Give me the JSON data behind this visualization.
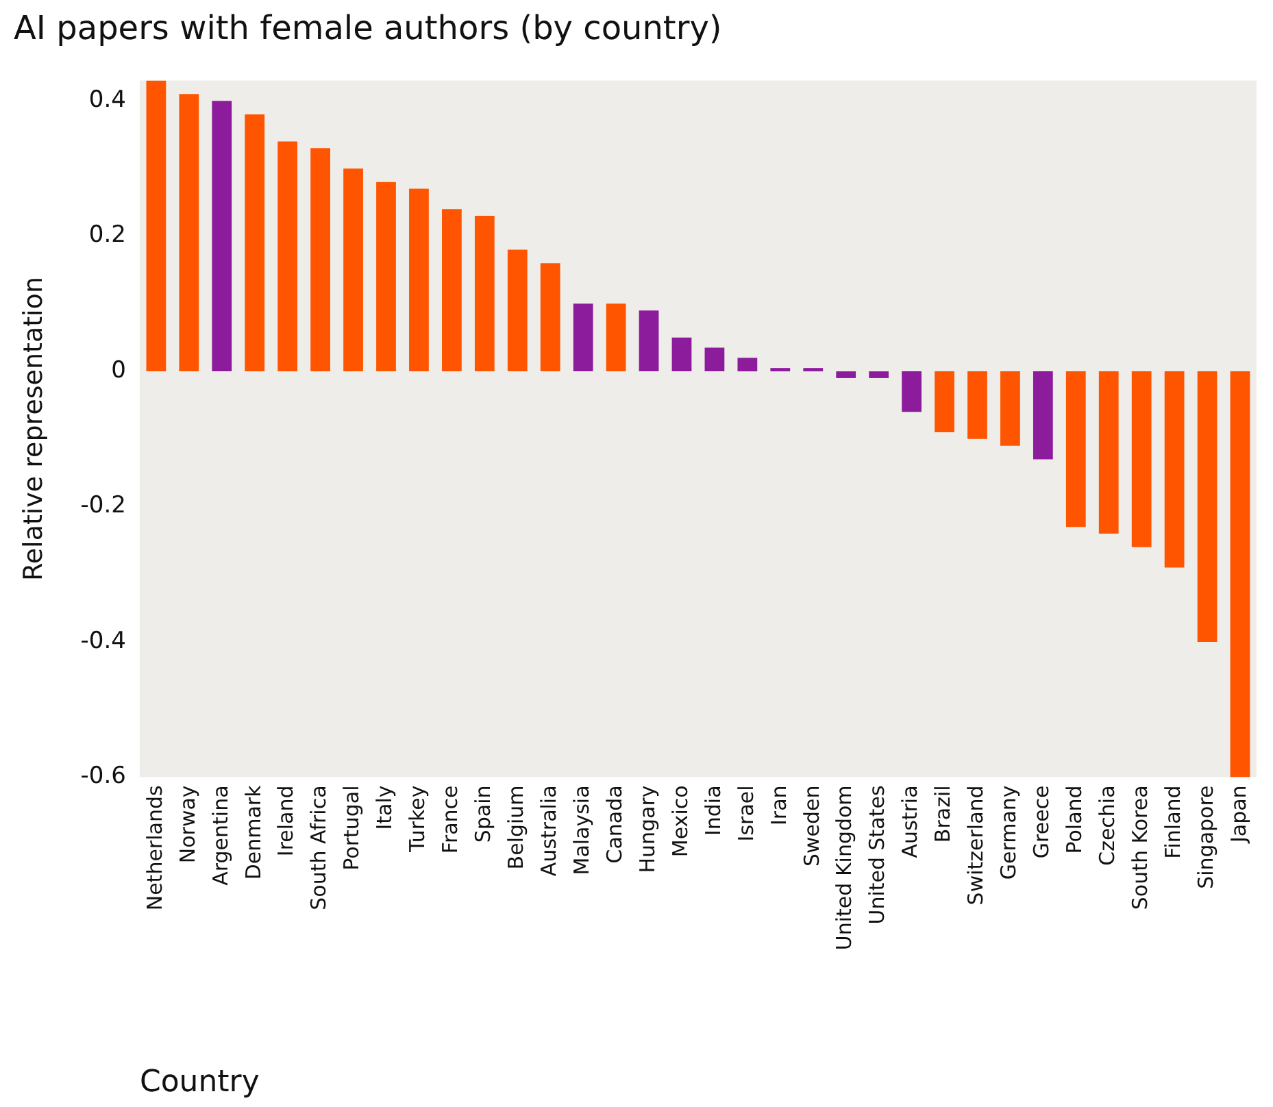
{
  "chart_data": {
    "type": "bar",
    "title": "AI papers with female authors (by country)",
    "xlabel": "Country",
    "ylabel": "Relative representation",
    "categories": [
      "Netherlands",
      "Norway",
      "Argentina",
      "Denmark",
      "Ireland",
      "South Africa",
      "Portugal",
      "Italy",
      "Turkey",
      "France",
      "Spain",
      "Belgium",
      "Australia",
      "Malaysia",
      "Canada",
      "Hungary",
      "Mexico",
      "India",
      "Israel",
      "Iran",
      "Sweden",
      "United Kingdom",
      "United States",
      "Austria",
      "Brazil",
      "Switzerland",
      "Germany",
      "Greece",
      "Poland",
      "Czechia",
      "South Korea",
      "Finland",
      "Singapore",
      "Japan"
    ],
    "values": [
      0.43,
      0.41,
      0.4,
      0.38,
      0.34,
      0.33,
      0.3,
      0.28,
      0.27,
      0.24,
      0.23,
      0.18,
      0.16,
      0.1,
      0.1,
      0.09,
      0.05,
      0.035,
      0.02,
      0.005,
      0.005,
      -0.01,
      -0.01,
      -0.06,
      -0.09,
      -0.1,
      -0.11,
      -0.13,
      -0.23,
      -0.24,
      -0.26,
      -0.29,
      -0.4,
      -0.6
    ],
    "colors": [
      "#ff5500",
      "#ff5500",
      "#8c1c9c",
      "#ff5500",
      "#ff5500",
      "#ff5500",
      "#ff5500",
      "#ff5500",
      "#ff5500",
      "#ff5500",
      "#ff5500",
      "#ff5500",
      "#ff5500",
      "#8c1c9c",
      "#ff5500",
      "#8c1c9c",
      "#8c1c9c",
      "#8c1c9c",
      "#8c1c9c",
      "#8c1c9c",
      "#8c1c9c",
      "#8c1c9c",
      "#8c1c9c",
      "#8c1c9c",
      "#ff5500",
      "#ff5500",
      "#ff5500",
      "#8c1c9c",
      "#ff5500",
      "#ff5500",
      "#ff5500",
      "#ff5500",
      "#ff5500",
      "#ff5500"
    ],
    "ylim": [
      -0.6,
      0.43
    ],
    "yticks": [
      -0.6,
      -0.4,
      -0.2,
      0,
      0.2,
      0.4
    ],
    "grid": false,
    "legend": false
  }
}
